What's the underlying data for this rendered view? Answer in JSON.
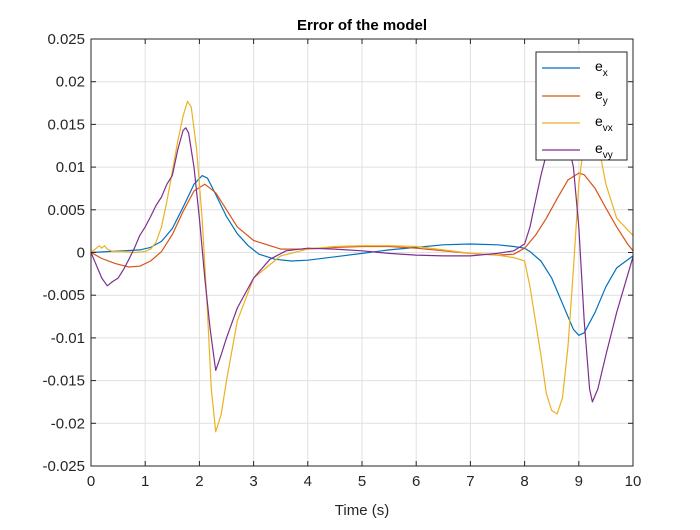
{
  "chart_data": {
    "type": "line",
    "title": "Error of the model",
    "xlabel": "Time (s)",
    "ylabel": "",
    "xlim": [
      0,
      10
    ],
    "ylim": [
      -0.025,
      0.025
    ],
    "grid": true,
    "legend_position": "top-right",
    "x_ticks": [
      0,
      1,
      2,
      3,
      4,
      5,
      6,
      7,
      8,
      9,
      10
    ],
    "x_tick_labels": [
      "0",
      "1",
      "2",
      "3",
      "4",
      "5",
      "6",
      "7",
      "8",
      "9",
      "10"
    ],
    "y_ticks": [
      -0.025,
      -0.02,
      -0.015,
      -0.01,
      -0.005,
      0,
      0.005,
      0.01,
      0.015,
      0.02,
      0.025
    ],
    "y_tick_labels": [
      "-0.025",
      "-0.02",
      "-0.015",
      "-0.01",
      "-0.005",
      "0",
      "0.005",
      "0.01",
      "0.015",
      "0.02",
      "0.025"
    ],
    "series": [
      {
        "name": "e_x",
        "label_base": "e",
        "label_sub": "x",
        "color": "#0072BD",
        "x": [
          0,
          0.3,
          0.6,
          0.9,
          1.1,
          1.3,
          1.5,
          1.7,
          1.9,
          2.05,
          2.15,
          2.3,
          2.5,
          2.7,
          2.9,
          3.1,
          3.4,
          3.7,
          4.0,
          4.5,
          5.0,
          5.5,
          6.0,
          6.5,
          7.0,
          7.5,
          7.8,
          8.0,
          8.1,
          8.3,
          8.5,
          8.7,
          8.9,
          9.0,
          9.1,
          9.3,
          9.5,
          9.7,
          10.0
        ],
        "y": [
          0,
          0.0001,
          0.0002,
          0.0003,
          0.0006,
          0.0013,
          0.0028,
          0.0053,
          0.008,
          0.009,
          0.0087,
          0.0068,
          0.0042,
          0.0022,
          0.0008,
          -0.0002,
          -0.0008,
          -0.001,
          -0.0009,
          -0.0005,
          -0.0001,
          0.0003,
          0.0006,
          0.0009,
          0.001,
          0.0009,
          0.0007,
          0.0005,
          0.0001,
          -0.001,
          -0.003,
          -0.006,
          -0.009,
          -0.0097,
          -0.0094,
          -0.007,
          -0.004,
          -0.0018,
          -0.0004
        ]
      },
      {
        "name": "e_y",
        "label_base": "e",
        "label_sub": "y",
        "color": "#D95319",
        "x": [
          0,
          0.2,
          0.45,
          0.7,
          0.9,
          1.1,
          1.3,
          1.5,
          1.7,
          1.9,
          2.1,
          2.3,
          2.5,
          2.7,
          3.0,
          3.5,
          4.0,
          4.5,
          5.0,
          5.5,
          6.0,
          6.5,
          7.0,
          7.5,
          7.8,
          8.0,
          8.2,
          8.4,
          8.6,
          8.8,
          9.0,
          9.1,
          9.3,
          9.5,
          9.7,
          9.9,
          10.0
        ],
        "y": [
          0,
          -0.0007,
          -0.0013,
          -0.0017,
          -0.0016,
          -0.001,
          0.0001,
          0.0021,
          0.0048,
          0.0072,
          0.008,
          0.007,
          0.005,
          0.003,
          0.0014,
          0.0004,
          0.0004,
          0.0006,
          0.0007,
          0.0007,
          0.0005,
          0.0002,
          -0.0001,
          -0.0003,
          -0.0002,
          0.0005,
          0.002,
          0.004,
          0.0063,
          0.0085,
          0.0093,
          0.0091,
          0.0075,
          0.0052,
          0.003,
          0.001,
          0.0002
        ]
      },
      {
        "name": "e_vx",
        "label_base": "e",
        "label_sub": "vx",
        "color": "#EDB120",
        "x": [
          0,
          0.1,
          0.15,
          0.2,
          0.25,
          0.3,
          0.4,
          0.6,
          0.8,
          1.0,
          1.1,
          1.2,
          1.3,
          1.4,
          1.5,
          1.6,
          1.7,
          1.78,
          1.85,
          1.95,
          2.05,
          2.15,
          2.22,
          2.3,
          2.4,
          2.5,
          2.7,
          3.0,
          3.5,
          4.0,
          4.5,
          5.0,
          5.5,
          6.0,
          6.5,
          7.0,
          7.5,
          7.8,
          8.0,
          8.1,
          8.2,
          8.3,
          8.4,
          8.5,
          8.6,
          8.7,
          8.8,
          8.9,
          9.0,
          9.1,
          9.2,
          9.3,
          9.35,
          9.5,
          9.7,
          10.0
        ],
        "y": [
          0,
          0.0005,
          0.0008,
          0.0005,
          0.0008,
          0.0004,
          0.0001,
          0.0001,
          0.0,
          0.0001,
          0.0004,
          0.0012,
          0.003,
          0.006,
          0.0095,
          0.013,
          0.016,
          0.0177,
          0.017,
          0.012,
          0.004,
          -0.007,
          -0.016,
          -0.021,
          -0.019,
          -0.015,
          -0.008,
          -0.003,
          -0.0004,
          0.0004,
          0.0007,
          0.0008,
          0.0008,
          0.0007,
          0.0003,
          -0.0001,
          -0.0003,
          -0.0006,
          -0.001,
          -0.004,
          -0.008,
          -0.012,
          -0.0165,
          -0.0185,
          -0.0189,
          -0.017,
          -0.011,
          -0.002,
          0.008,
          0.013,
          0.016,
          0.015,
          0.013,
          0.008,
          0.004,
          0.002
        ]
      },
      {
        "name": "e_vy",
        "label_base": "e",
        "label_sub": "vy",
        "color": "#7E2F8E",
        "x": [
          0,
          0.1,
          0.2,
          0.3,
          0.4,
          0.5,
          0.6,
          0.7,
          0.8,
          0.9,
          1.0,
          1.1,
          1.2,
          1.3,
          1.4,
          1.5,
          1.6,
          1.7,
          1.75,
          1.8,
          1.9,
          2.0,
          2.1,
          2.2,
          2.3,
          2.4,
          2.5,
          2.7,
          3.0,
          3.3,
          3.6,
          4.0,
          4.5,
          5.0,
          5.5,
          6.0,
          6.5,
          7.0,
          7.5,
          7.8,
          8.0,
          8.1,
          8.2,
          8.3,
          8.4,
          8.5,
          8.6,
          8.7,
          8.8,
          8.9,
          9.0,
          9.1,
          9.2,
          9.25,
          9.35,
          9.5,
          9.7,
          10.0
        ],
        "y": [
          0,
          -0.0015,
          -0.003,
          -0.0039,
          -0.0034,
          -0.003,
          -0.002,
          -0.0008,
          0.0005,
          0.002,
          0.003,
          0.0042,
          0.0055,
          0.0065,
          0.008,
          0.009,
          0.012,
          0.0143,
          0.0146,
          0.014,
          0.01,
          0.004,
          -0.003,
          -0.009,
          -0.0138,
          -0.012,
          -0.01,
          -0.0065,
          -0.003,
          -0.0008,
          0.0002,
          0.0005,
          0.0004,
          0.0002,
          -0.0001,
          -0.0003,
          -0.0004,
          -0.0004,
          -0.0001,
          0.0002,
          0.001,
          0.003,
          0.006,
          0.009,
          0.0115,
          0.014,
          0.0145,
          0.014,
          0.013,
          0.01,
          0.003,
          -0.008,
          -0.016,
          -0.0175,
          -0.016,
          -0.012,
          -0.007,
          -0.0005
        ]
      }
    ]
  }
}
